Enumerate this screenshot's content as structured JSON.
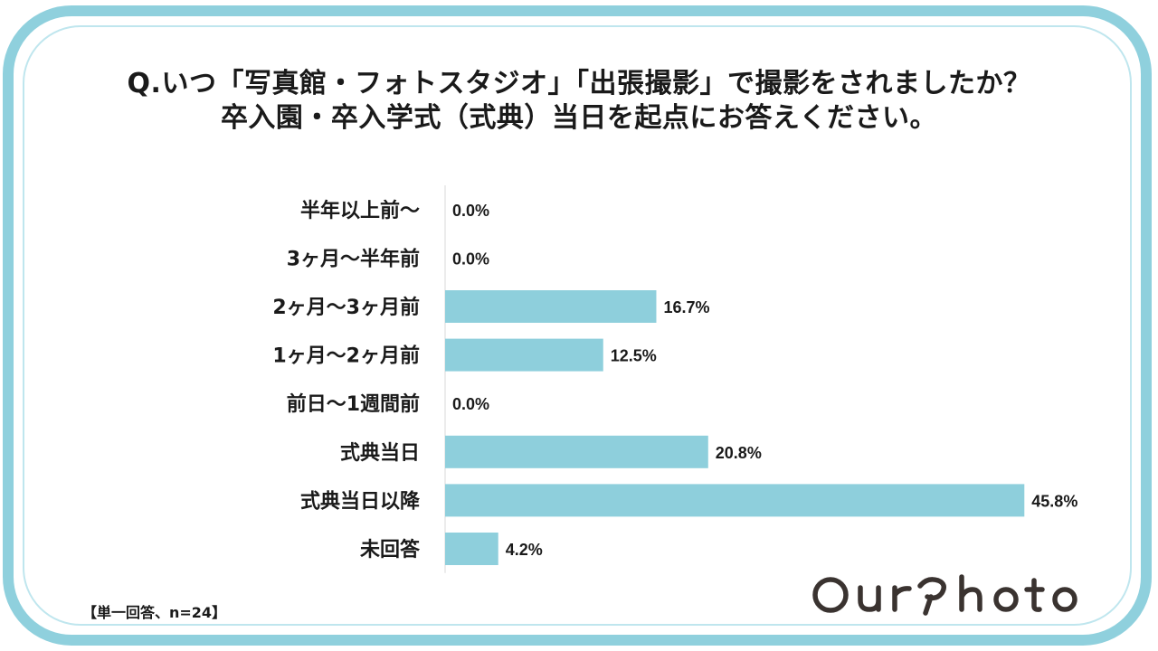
{
  "title": {
    "line1": "Q.いつ「写真館・フォトスタジオ」「出張撮影」で撮影をされましたか？",
    "line2": "卒入園・卒入学式（式典）当日を起点にお答えください。"
  },
  "footnote": "【単一回答、n=24】",
  "logo_text": "OurPhoto",
  "colors": {
    "bar": "#8ecfdc",
    "frame": "#8fd0dd",
    "axis": "#d9d9d9"
  },
  "chart_data": {
    "type": "bar",
    "orientation": "horizontal",
    "categories": [
      "半年以上前～",
      "3ヶ月～半年前",
      "2ヶ月～3ヶ月前",
      "1ヶ月～2ヶ月前",
      "前日～1週間前",
      "式典当日",
      "式典当日以降",
      "未回答"
    ],
    "values": [
      0.0,
      0.0,
      16.7,
      12.5,
      0.0,
      20.8,
      45.8,
      4.2
    ],
    "value_labels": [
      "0.0%",
      "0.0%",
      "16.7%",
      "12.5%",
      "0.0%",
      "20.8%",
      "45.8%",
      "4.2%"
    ],
    "unit": "%",
    "grid": false
  }
}
